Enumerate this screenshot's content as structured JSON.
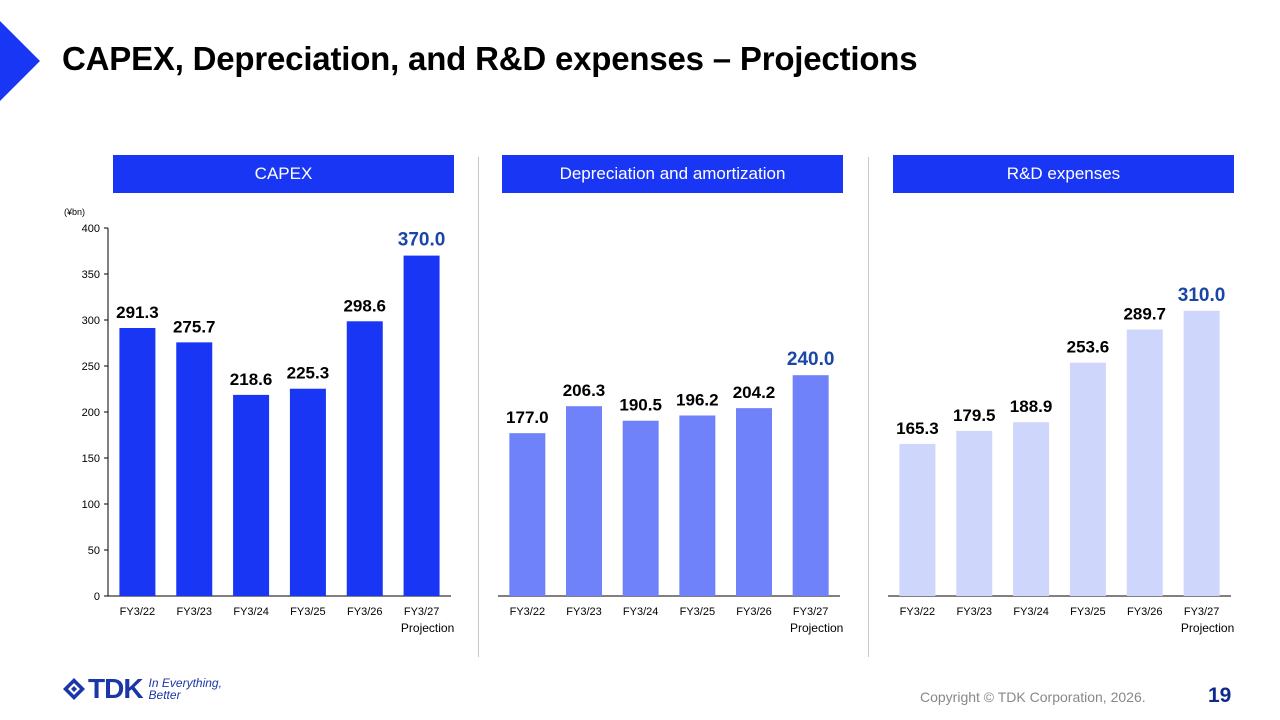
{
  "title": "CAPEX, Depreciation, and R&D expenses – Projections",
  "unit_label": "(¥bn)",
  "colors": {
    "capex": "#1a36f5",
    "depreciation": "#7082fa",
    "rd": "#cfd6fc",
    "highlight": "#1a46a8"
  },
  "chart_data": [
    {
      "type": "bar",
      "title": "CAPEX",
      "categories": [
        "FY3/22",
        "FY3/23",
        "FY3/24",
        "FY3/25",
        "FY3/26",
        "FY3/27"
      ],
      "category_sublabels": [
        "",
        "",
        "",
        "",
        "",
        "Projection"
      ],
      "values": [
        291.3,
        275.7,
        218.6,
        225.3,
        298.6,
        370.0
      ],
      "value_labels": [
        "291.3",
        "275.7",
        "218.6",
        "225.3",
        "298.6",
        "370.0"
      ],
      "highlight_index": 5,
      "ylim": [
        0,
        400
      ],
      "yticks": [
        0,
        50,
        100,
        150,
        200,
        250,
        300,
        350,
        400
      ],
      "color": "#1a36f5"
    },
    {
      "type": "bar",
      "title": "Depreciation and amortization",
      "categories": [
        "FY3/22",
        "FY3/23",
        "FY3/24",
        "FY3/25",
        "FY3/26",
        "FY3/27"
      ],
      "category_sublabels": [
        "",
        "",
        "",
        "",
        "",
        "Projection"
      ],
      "values": [
        177.0,
        206.3,
        190.5,
        196.2,
        204.2,
        240.0
      ],
      "value_labels": [
        "177.0",
        "206.3",
        "190.5",
        "196.2",
        "204.2",
        "240.0"
      ],
      "highlight_index": 5,
      "ylim": [
        0,
        400
      ],
      "color": "#7082fa"
    },
    {
      "type": "bar",
      "title": "R&D expenses",
      "categories": [
        "FY3/22",
        "FY3/23",
        "FY3/24",
        "FY3/25",
        "FY3/26",
        "FY3/27"
      ],
      "category_sublabels": [
        "",
        "",
        "",
        "",
        "",
        "Projection"
      ],
      "values": [
        165.3,
        179.5,
        188.9,
        253.6,
        289.7,
        310.0
      ],
      "value_labels": [
        "165.3",
        "179.5",
        "188.9",
        "253.6",
        "289.7",
        "310.0"
      ],
      "highlight_index": 5,
      "ylim": [
        0,
        400
      ],
      "color": "#cfd6fc"
    }
  ],
  "footer": {
    "logo_text": "TDK",
    "tagline_line1": "In Everything,",
    "tagline_line2": "Better",
    "copyright": "Copyright © TDK Corporation, 2026.",
    "page_number": "19"
  }
}
